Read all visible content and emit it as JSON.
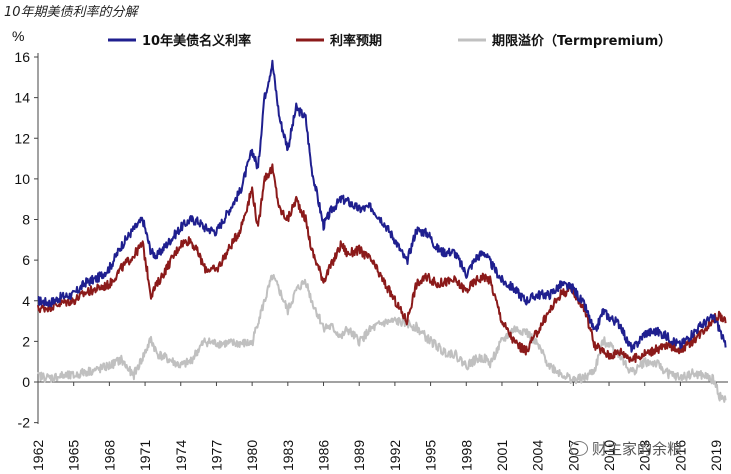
{
  "title": "10年期美债利率的分解",
  "watermark": "财主家的余粮",
  "chart_data": {
    "type": "line",
    "ylabel": "%",
    "ylim": [
      -2,
      16
    ],
    "yticks": [
      -2,
      0,
      2,
      4,
      6,
      8,
      10,
      12,
      14,
      16
    ],
    "xlim": [
      1962,
      2020
    ],
    "xticks": [
      "1962",
      "1965",
      "1968",
      "1971",
      "1974",
      "1977",
      "1980",
      "1983",
      "1986",
      "1989",
      "1992",
      "1995",
      "1998",
      "2001",
      "2004",
      "2007",
      "2010",
      "2013",
      "2016",
      "2019"
    ],
    "legend_position": "top",
    "series": [
      {
        "name": "10年美债名义利率",
        "color": "#1f1f8f",
        "x": [
          1962,
          1963,
          1964,
          1965,
          1966,
          1967,
          1968,
          1969,
          1970,
          1970.8,
          1971.5,
          1972,
          1973,
          1974,
          1974.8,
          1975.5,
          1976,
          1977,
          1978,
          1979,
          1980,
          1980.5,
          1981,
          1981.7,
          1982.3,
          1983,
          1983.7,
          1984.5,
          1985,
          1986,
          1986.7,
          1987.5,
          1988,
          1989,
          1990,
          1991,
          1992,
          1993,
          1993.8,
          1994.8,
          1995.5,
          1996,
          1997,
          1998,
          1998.8,
          1999.5,
          2000,
          2001,
          2002,
          2003,
          2004,
          2005,
          2006,
          2007,
          2008,
          2008.8,
          2009.5,
          2010,
          2011,
          2011.5,
          2012,
          2013,
          2014,
          2015,
          2016,
          2017,
          2018,
          2018.8,
          2019.3,
          2019.8
        ],
        "y": [
          4.0,
          3.9,
          4.2,
          4.3,
          4.9,
          5.1,
          5.6,
          6.7,
          7.5,
          8.0,
          6.4,
          6.2,
          6.9,
          7.6,
          8.0,
          7.9,
          7.6,
          7.4,
          8.4,
          9.4,
          11.4,
          10.5,
          13.9,
          15.7,
          13.0,
          11.5,
          13.5,
          13.0,
          10.5,
          7.7,
          8.5,
          9.0,
          8.9,
          8.5,
          8.6,
          7.9,
          7.0,
          5.9,
          7.5,
          7.3,
          6.6,
          6.4,
          6.4,
          5.3,
          6.1,
          6.4,
          5.9,
          5.0,
          4.6,
          4.0,
          4.3,
          4.3,
          4.8,
          4.6,
          3.7,
          2.4,
          3.5,
          3.2,
          2.8,
          2.0,
          1.6,
          2.4,
          2.5,
          2.2,
          1.8,
          2.4,
          2.9,
          3.2,
          2.6,
          1.7
        ]
      },
      {
        "name": "利率预期",
        "color": "#8b1a1a",
        "x": [
          1962,
          1963,
          1964,
          1965,
          1966,
          1967,
          1968,
          1969,
          1970,
          1970.8,
          1971.5,
          1972,
          1973,
          1974,
          1974.8,
          1975.5,
          1976,
          1977,
          1978,
          1979,
          1980,
          1980.5,
          1981,
          1981.7,
          1982.3,
          1983,
          1983.7,
          1984.5,
          1985,
          1986,
          1986.7,
          1987.5,
          1988,
          1989,
          1990,
          1991,
          1992,
          1993,
          1993.8,
          1994.8,
          1995.5,
          1996,
          1997,
          1998,
          1998.8,
          1999.5,
          2000,
          2001,
          2002,
          2003,
          2004,
          2005,
          2006,
          2007,
          2008,
          2008.8,
          2009.5,
          2010,
          2011,
          2011.5,
          2012,
          2013,
          2014,
          2015,
          2016,
          2017,
          2018,
          2018.8,
          2019.3,
          2019.8
        ],
        "y": [
          3.6,
          3.7,
          3.9,
          4.0,
          4.4,
          4.6,
          4.8,
          5.6,
          6.2,
          6.8,
          4.3,
          4.8,
          5.8,
          6.8,
          7.0,
          6.3,
          5.6,
          5.5,
          6.5,
          7.5,
          9.5,
          7.5,
          10.0,
          10.5,
          8.5,
          8.0,
          9.0,
          8.0,
          6.5,
          5.0,
          5.8,
          6.8,
          6.3,
          6.5,
          6.0,
          5.0,
          4.0,
          3.0,
          4.8,
          5.2,
          4.8,
          4.9,
          5.0,
          4.5,
          5.0,
          5.2,
          5.0,
          3.0,
          2.0,
          1.5,
          2.5,
          3.5,
          4.4,
          4.5,
          3.5,
          1.8,
          1.5,
          1.3,
          1.5,
          1.3,
          1.1,
          1.4,
          1.6,
          1.8,
          1.6,
          2.0,
          2.6,
          3.1,
          3.3,
          2.9
        ]
      },
      {
        "name": "期限溢价（Termpremium）",
        "color": "#c0c0c0",
        "x": [
          1962,
          1963,
          1964,
          1965,
          1966,
          1967,
          1968,
          1969,
          1970,
          1970.8,
          1971.5,
          1972,
          1973,
          1974,
          1974.8,
          1975.5,
          1976,
          1977,
          1978,
          1979,
          1980,
          1980.5,
          1981,
          1981.7,
          1982.3,
          1983,
          1983.7,
          1984.5,
          1985,
          1986,
          1986.7,
          1987.5,
          1988,
          1989,
          1990,
          1991,
          1992,
          1993,
          1993.8,
          1994.8,
          1995.5,
          1996,
          1997,
          1998,
          1998.8,
          1999.5,
          2000,
          2001,
          2002,
          2003,
          2004,
          2005,
          2006,
          2007,
          2008,
          2008.8,
          2009.5,
          2010,
          2011,
          2011.5,
          2012,
          2013,
          2014,
          2015,
          2016,
          2017,
          2018,
          2018.8,
          2019.3,
          2019.8
        ],
        "y": [
          0.3,
          0.2,
          0.3,
          0.3,
          0.5,
          0.6,
          0.8,
          1.1,
          0.3,
          1.2,
          2.1,
          1.4,
          1.1,
          0.8,
          1.0,
          1.6,
          2.0,
          1.9,
          1.9,
          1.9,
          1.9,
          3.0,
          3.9,
          5.2,
          4.5,
          3.5,
          4.5,
          5.0,
          4.0,
          2.7,
          2.7,
          2.2,
          2.6,
          2.0,
          2.6,
          2.9,
          3.0,
          2.9,
          2.7,
          2.1,
          1.8,
          1.5,
          1.4,
          0.8,
          1.1,
          1.2,
          0.9,
          2.0,
          2.6,
          2.5,
          1.8,
          0.8,
          0.4,
          0.1,
          0.2,
          0.6,
          2.0,
          1.9,
          1.3,
          0.7,
          0.5,
          1.0,
          0.9,
          0.4,
          0.2,
          0.4,
          0.3,
          0.1,
          -0.7,
          -0.9
        ]
      }
    ]
  }
}
